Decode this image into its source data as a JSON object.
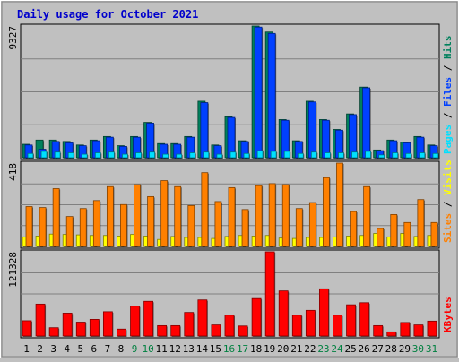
{
  "title": "Daily usage for October 2021",
  "colors": {
    "background": "#c0c0c0",
    "title": "#0000cc",
    "hits": "#00805c",
    "files": "#0040ff",
    "pages": "#00e0ff",
    "visits": "#ffff00",
    "sites": "#ff8000",
    "kbytes": "#ff0000",
    "weekend_label": "#008040",
    "weekday_label": "#000000",
    "slash": "#000000"
  },
  "chart_data": [
    {
      "type": "bar",
      "panel": "hits-files-pages",
      "ymax_label": "9327",
      "ymax": 9327,
      "legend_placement": "right",
      "legend": [
        {
          "key": "pages",
          "label": "Pages"
        },
        {
          "key": "files",
          "label": "Files"
        },
        {
          "key": "hits",
          "label": "Hits"
        }
      ],
      "categories": [
        "1",
        "2",
        "3",
        "4",
        "5",
        "6",
        "7",
        "8",
        "9",
        "10",
        "11",
        "12",
        "13",
        "14",
        "15",
        "16",
        "17",
        "18",
        "19",
        "20",
        "21",
        "22",
        "23",
        "24",
        "25",
        "26",
        "27",
        "28",
        "29",
        "30",
        "31"
      ],
      "series": [
        {
          "key": "hits",
          "name": "Hits",
          "values": [
            950,
            1250,
            1250,
            1150,
            900,
            1250,
            1500,
            850,
            1500,
            2500,
            1000,
            1000,
            1500,
            4000,
            900,
            2900,
            1200,
            9327,
            8900,
            2700,
            1200,
            4000,
            2700,
            2000,
            3100,
            5000,
            550,
            1250,
            1100,
            1500,
            900
          ]
        },
        {
          "key": "files",
          "name": "Files",
          "values": [
            900,
            600,
            1150,
            1050,
            850,
            1200,
            1450,
            800,
            1450,
            2450,
            950,
            950,
            1450,
            3900,
            850,
            2850,
            1150,
            9250,
            8800,
            2650,
            1150,
            3950,
            2650,
            1950,
            3050,
            4950,
            500,
            1200,
            1050,
            1450,
            850
          ]
        },
        {
          "key": "pages",
          "name": "Pages",
          "values": [
            300,
            450,
            400,
            350,
            250,
            350,
            400,
            250,
            350,
            400,
            250,
            250,
            350,
            400,
            250,
            400,
            300,
            500,
            450,
            450,
            300,
            400,
            350,
            350,
            400,
            450,
            200,
            350,
            300,
            350,
            300
          ]
        }
      ]
    },
    {
      "type": "bar",
      "panel": "visits-sites",
      "ymax_label": "418",
      "ymax": 418,
      "legend_placement": "right",
      "legend": [
        {
          "key": "sites",
          "label": "Sites"
        },
        {
          "key": "visits",
          "label": "Visits"
        }
      ],
      "categories": [
        "1",
        "2",
        "3",
        "4",
        "5",
        "6",
        "7",
        "8",
        "9",
        "10",
        "11",
        "12",
        "13",
        "14",
        "15",
        "16",
        "17",
        "18",
        "19",
        "20",
        "21",
        "22",
        "23",
        "24",
        "25",
        "26",
        "27",
        "28",
        "29",
        "30",
        "31"
      ],
      "series": [
        {
          "key": "visits",
          "name": "Visits",
          "values": [
            48,
            52,
            62,
            60,
            58,
            55,
            55,
            52,
            60,
            52,
            35,
            50,
            45,
            45,
            40,
            50,
            55,
            52,
            55,
            42,
            40,
            45,
            45,
            48,
            52,
            55,
            65,
            48,
            65,
            50,
            55
          ]
        },
        {
          "key": "sites",
          "name": "Sites",
          "values": [
            200,
            195,
            290,
            150,
            190,
            230,
            300,
            210,
            310,
            250,
            330,
            300,
            205,
            370,
            225,
            295,
            185,
            305,
            315,
            310,
            190,
            220,
            345,
            418,
            175,
            300,
            90,
            160,
            120,
            235,
            120
          ]
        }
      ]
    },
    {
      "type": "bar",
      "panel": "kbytes",
      "ymax_label": "121328",
      "ymax": 121328,
      "legend_placement": "right",
      "legend": [
        {
          "key": "kbytes",
          "label": "KBytes"
        }
      ],
      "categories": [
        "1",
        "2",
        "3",
        "4",
        "5",
        "6",
        "7",
        "8",
        "9",
        "10",
        "11",
        "12",
        "13",
        "14",
        "15",
        "16",
        "17",
        "18",
        "19",
        "20",
        "21",
        "22",
        "23",
        "24",
        "25",
        "26",
        "27",
        "28",
        "29",
        "30",
        "31"
      ],
      "weekend_days": [
        "9",
        "10",
        "16",
        "17",
        "23",
        "24",
        "30",
        "31"
      ],
      "series": [
        {
          "key": "kbytes",
          "name": "KBytes",
          "values": [
            22000,
            46000,
            12000,
            33000,
            20000,
            24000,
            35000,
            10000,
            43000,
            50000,
            15000,
            15000,
            34000,
            52000,
            16000,
            30000,
            14500,
            54000,
            121328,
            65000,
            30000,
            37000,
            68000,
            30000,
            45000,
            48000,
            15000,
            6000,
            19500,
            16000,
            21500
          ]
        }
      ]
    }
  ]
}
